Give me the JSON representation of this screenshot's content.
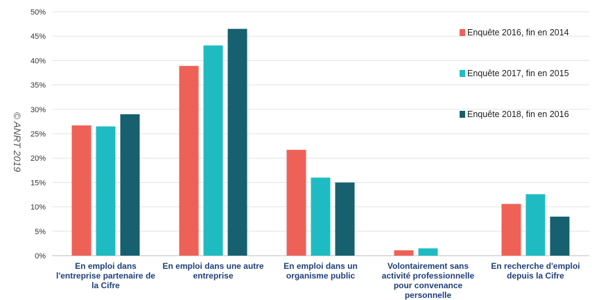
{
  "copyright": "© ANRT 2019",
  "chart_data": {
    "type": "bar",
    "ylim": [
      0,
      50
    ],
    "yticks": [
      0,
      5,
      10,
      15,
      20,
      25,
      30,
      35,
      40,
      45,
      50
    ],
    "ytick_suffix": "%",
    "grid": true,
    "legend_position": "right",
    "categories": [
      [
        "En emploi dans",
        "l'entreprise partenaire de",
        "la Cifre"
      ],
      [
        "En emploi dans une autre",
        "entreprise"
      ],
      [
        "En emploi dans un",
        "organisme public"
      ],
      [
        "Volontairement sans",
        "activité professionnelle",
        "pour convenance",
        "personnelle"
      ],
      [
        "En recherche d'emploi",
        "depuis la Cifre"
      ]
    ],
    "series": [
      {
        "name": "Enquête 2016, fin en 2014",
        "color": "#ee6157",
        "values": [
          26.7,
          38.9,
          21.7,
          1.1,
          10.6
        ]
      },
      {
        "name": "Enquête 2017, fin en 2015",
        "color": "#1ebcc2",
        "values": [
          26.5,
          43.1,
          16.0,
          1.5,
          12.6
        ]
      },
      {
        "name": "Enquête 2018, fin en 2016",
        "color": "#17606f",
        "values": [
          29.0,
          46.5,
          15.0,
          0,
          8.0
        ]
      }
    ]
  }
}
